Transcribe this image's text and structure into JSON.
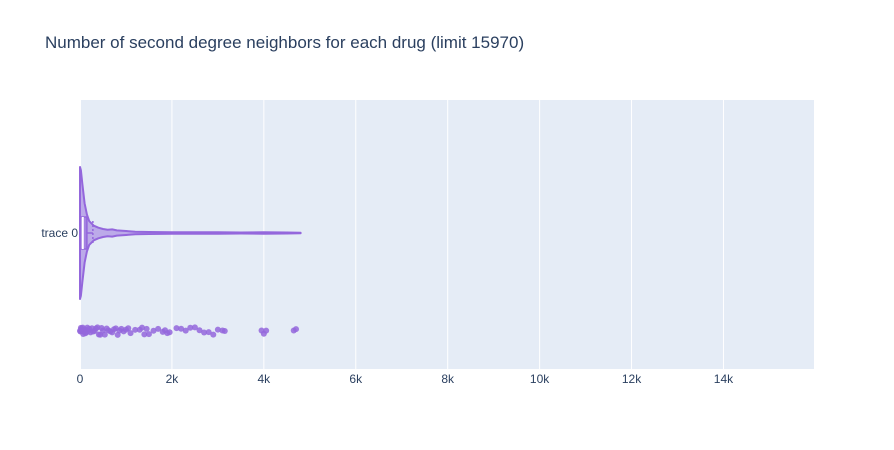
{
  "chart_data": {
    "type": "violin",
    "title": "Number of second degree neighbors for each drug (limit 15970)",
    "xlabel": "",
    "ylabel": "",
    "orientation": "horizontal",
    "xlim": [
      0,
      15970
    ],
    "x_ticks": [
      0,
      2000,
      4000,
      6000,
      8000,
      10000,
      12000,
      14000
    ],
    "x_tick_labels": [
      "0",
      "2k",
      "4k",
      "6k",
      "8k",
      "10k",
      "12k",
      "14k"
    ],
    "grid": true,
    "legend": "none",
    "series": [
      {
        "name": "trace 0",
        "color": "#9467dc",
        "box": {
          "q1": 5,
          "median": 60,
          "q3": 150,
          "whisker_high": 280
        },
        "max": 4800,
        "density": [
          [
            0,
            1.0
          ],
          [
            20,
            0.95
          ],
          [
            50,
            0.75
          ],
          [
            100,
            0.45
          ],
          [
            150,
            0.28
          ],
          [
            200,
            0.18
          ],
          [
            300,
            0.11
          ],
          [
            400,
            0.08
          ],
          [
            500,
            0.06
          ],
          [
            600,
            0.05
          ],
          [
            700,
            0.055
          ],
          [
            800,
            0.04
          ],
          [
            1000,
            0.03
          ],
          [
            1200,
            0.02
          ],
          [
            1500,
            0.015
          ],
          [
            2000,
            0.012
          ],
          [
            2500,
            0.01
          ],
          [
            3000,
            0.012
          ],
          [
            3500,
            0.008
          ],
          [
            4000,
            0.01
          ],
          [
            4500,
            0.008
          ],
          [
            4800,
            0.005
          ]
        ],
        "points": [
          0,
          10,
          20,
          30,
          40,
          50,
          60,
          70,
          80,
          90,
          100,
          120,
          140,
          160,
          180,
          200,
          230,
          260,
          290,
          320,
          350,
          380,
          410,
          440,
          470,
          500,
          540,
          580,
          620,
          660,
          700,
          740,
          780,
          820,
          860,
          900,
          950,
          1000,
          1050,
          1100,
          1200,
          1300,
          1350,
          1400,
          1450,
          1500,
          1600,
          1700,
          1800,
          1850,
          1900,
          1950,
          2100,
          2200,
          2300,
          2400,
          2500,
          2600,
          2700,
          2800,
          2900,
          3000,
          3100,
          3150,
          3950,
          4000,
          4050,
          4650,
          4700
        ]
      }
    ]
  }
}
